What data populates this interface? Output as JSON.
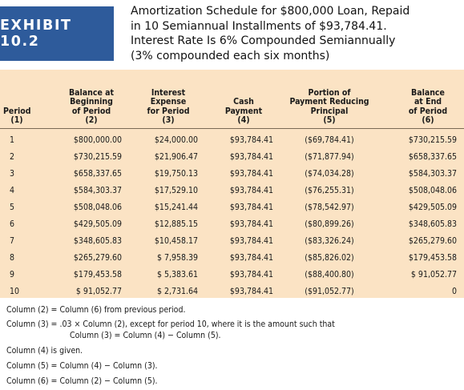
{
  "exhibit": {
    "label": "EXHIBIT 10.2"
  },
  "title": {
    "lines": [
      "Amortization Schedule for $800,000 Loan, Repaid",
      "in 10 Semiannual Installments of $93,784.41.",
      "Interest Rate Is 6% Compounded Semiannually",
      "(3% compounded each six months)"
    ]
  },
  "table": {
    "columns": [
      {
        "lines": [
          "Period",
          "(1)"
        ]
      },
      {
        "lines": [
          "Balance at",
          "Beginning",
          "of Period",
          "(2)"
        ]
      },
      {
        "lines": [
          "Interest",
          "Expense",
          "for Period",
          "(3)"
        ]
      },
      {
        "lines": [
          "Cash",
          "Payment",
          "(4)"
        ]
      },
      {
        "lines": [
          "Portion of",
          "Payment Reducing",
          "Principal",
          "(5)"
        ]
      },
      {
        "lines": [
          "Balance",
          "at End",
          "of Period",
          "(6)"
        ]
      }
    ],
    "rows": [
      [
        "1",
        "$800,000.00",
        "$24,000.00",
        "$93,784.41",
        "($69,784.41)",
        "$730,215.59"
      ],
      [
        "2",
        "$730,215.59",
        "$21,906.47",
        "$93,784.41",
        "($71,877.94)",
        "$658,337.65"
      ],
      [
        "3",
        "$658,337.65",
        "$19,750.13",
        "$93,784.41",
        "($74,034.28)",
        "$584,303.37"
      ],
      [
        "4",
        "$584,303.37",
        "$17,529.10",
        "$93,784.41",
        "($76,255.31)",
        "$508,048.06"
      ],
      [
        "5",
        "$508,048.06",
        "$15,241.44",
        "$93,784.41",
        "($78,542.97)",
        "$429,505.09"
      ],
      [
        "6",
        "$429,505.09",
        "$12,885.15",
        "$93,784.41",
        "($80,899.26)",
        "$348,605.83"
      ],
      [
        "7",
        "$348,605.83",
        "$10,458.17",
        "$93,784.41",
        "($83,326.24)",
        "$265,279.60"
      ],
      [
        "8",
        "$265,279.60",
        "$ 7,958.39",
        "$93,784.41",
        "($85,826.02)",
        "$179,453.58"
      ],
      [
        "9",
        "$179,453.58",
        "$ 5,383.61",
        "$93,784.41",
        "($88,400.80)",
        "$ 91,052.77"
      ],
      [
        "10",
        "$ 91,052.77",
        "$ 2,731.64",
        "$93,784.41",
        "($91,052.77)",
        "0"
      ]
    ]
  },
  "notes": {
    "n1": "Column (2) = Column (6) from previous period.",
    "n2a": "Column (3) = .03 × Column (2), except for period 10, where it is the amount such that",
    "n2b": "Column (3) = Column (4) − Column (5).",
    "n3": "Column (4) is given.",
    "n4": "Column (5) = Column (4) − Column (3).",
    "n5": "Column (6) = Column (2) − Column (5)."
  }
}
